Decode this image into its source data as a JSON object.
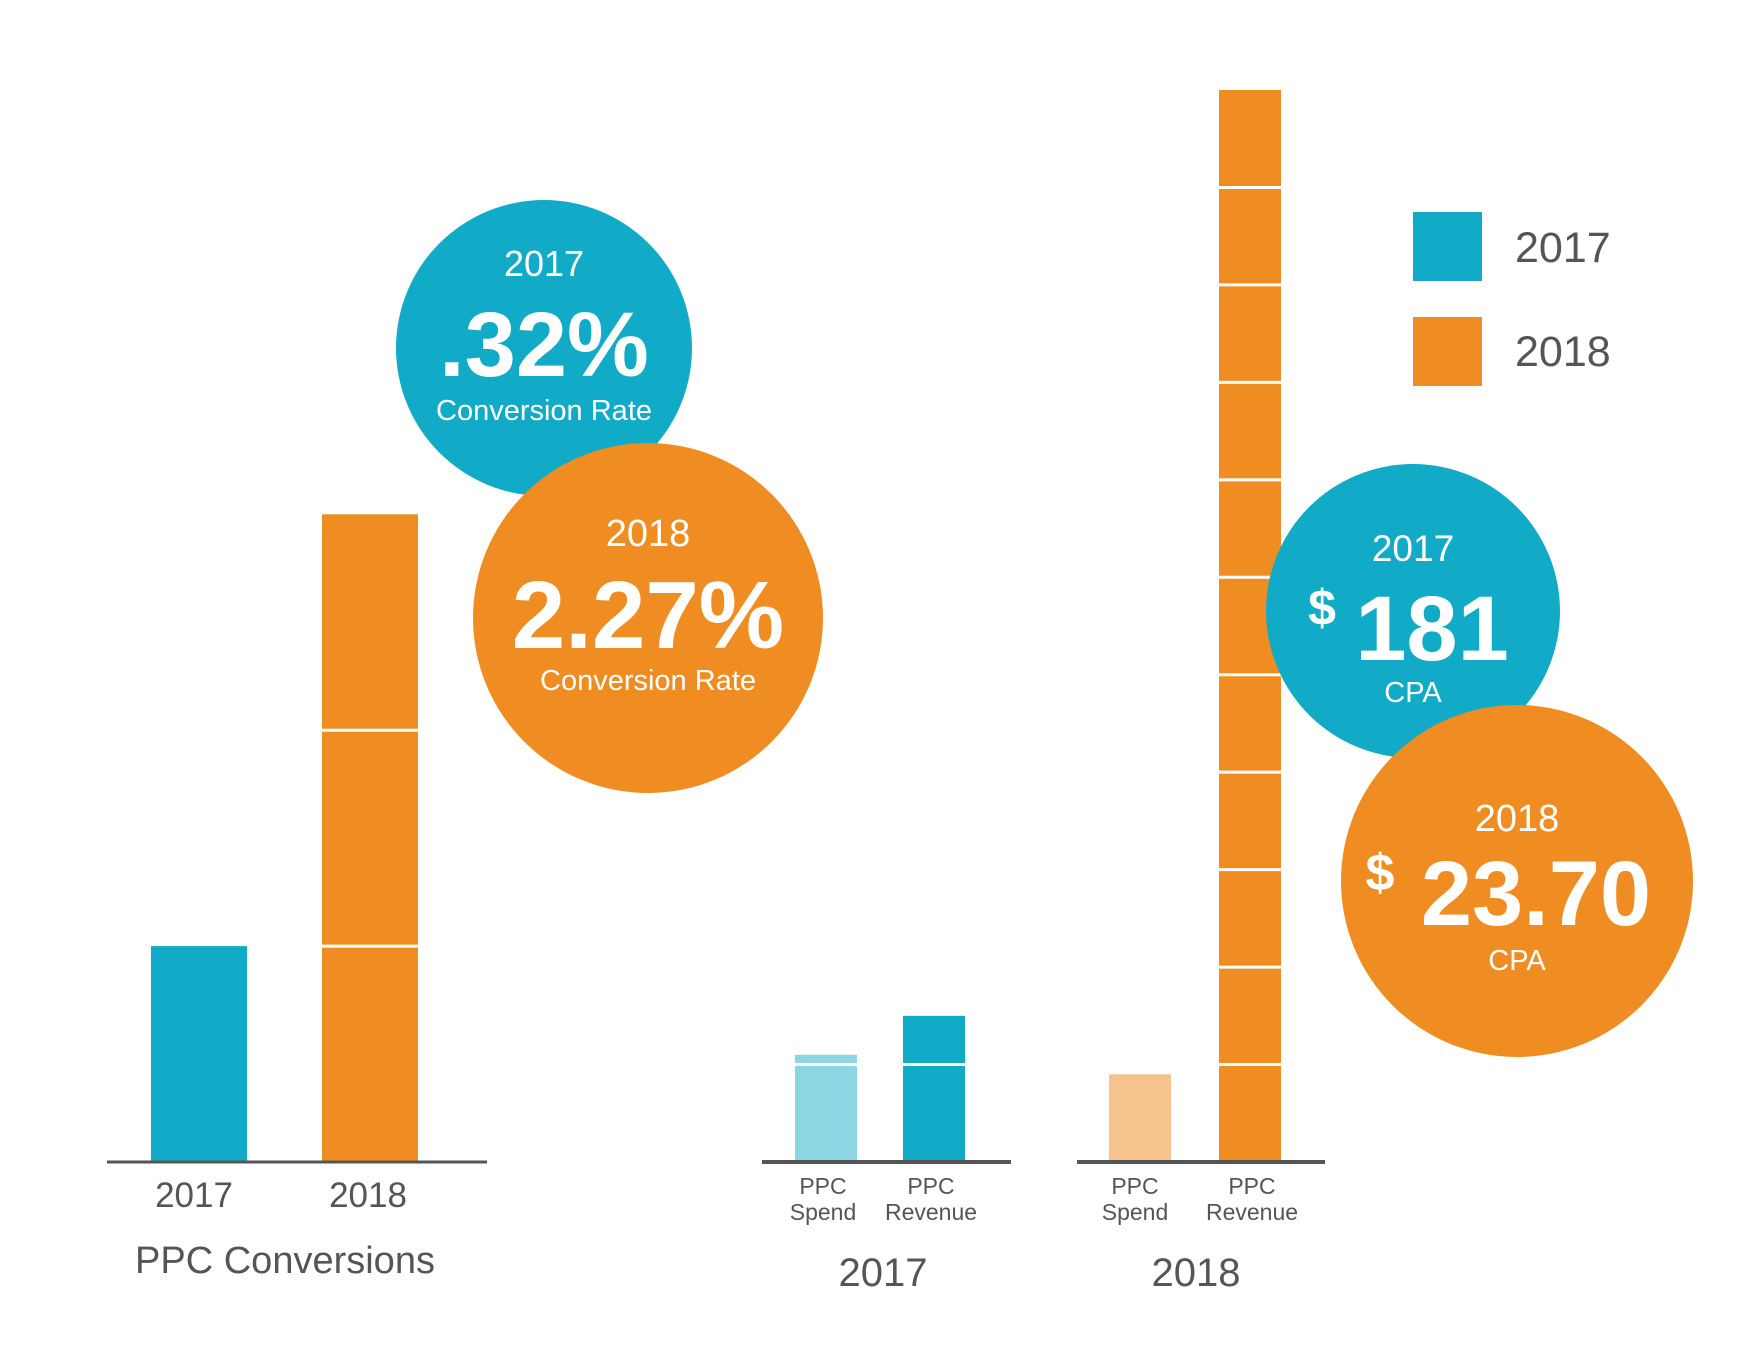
{
  "colors": {
    "teal": "#12abc7",
    "orange": "#ef8d22",
    "light_teal": "#8ad6e3",
    "light_orange": "#f6c38d",
    "axis": "#555555",
    "text": "#555555",
    "white": "#ffffff"
  },
  "legend": {
    "position": "top-right",
    "items": [
      {
        "label": "2017",
        "color": "#12abc7"
      },
      {
        "label": "2018",
        "color": "#ef8d22"
      }
    ]
  },
  "callouts": {
    "rate_2017": {
      "year": "2017",
      "value": ".32%",
      "caption": "Conversion Rate"
    },
    "rate_2018": {
      "year": "2018",
      "value": "2.27%",
      "caption": "Conversion Rate"
    },
    "cpa_2017": {
      "year": "2017",
      "currency": "$",
      "value": "181",
      "caption": "CPA"
    },
    "cpa_2018": {
      "year": "2018",
      "currency": "$",
      "value": "23.70",
      "caption": "CPA"
    }
  },
  "chart_data": [
    {
      "type": "bar",
      "title": "PPC Conversions",
      "categories": [
        "2017",
        "2018"
      ],
      "values": [
        1,
        3
      ],
      "colors": [
        "#12abc7",
        "#ef8d22"
      ],
      "ylim": [
        0,
        3.9
      ],
      "grid": false
    },
    {
      "type": "bar",
      "title": "2017",
      "categories": [
        "PPC\nSpend",
        "PPC\nRevenue"
      ],
      "values": [
        1.1,
        1.5
      ],
      "colors": [
        "#8ad6e3",
        "#12abc7"
      ],
      "ylim": [
        0,
        11
      ],
      "grid": false
    },
    {
      "type": "bar",
      "title": "2018",
      "categories": [
        "PPC\nSpend",
        "PPC\nRevenue"
      ],
      "values": [
        0.9,
        11
      ],
      "colors": [
        "#f6c38d",
        "#ef8d22"
      ],
      "ylim": [
        0,
        11
      ],
      "grid": false
    }
  ]
}
